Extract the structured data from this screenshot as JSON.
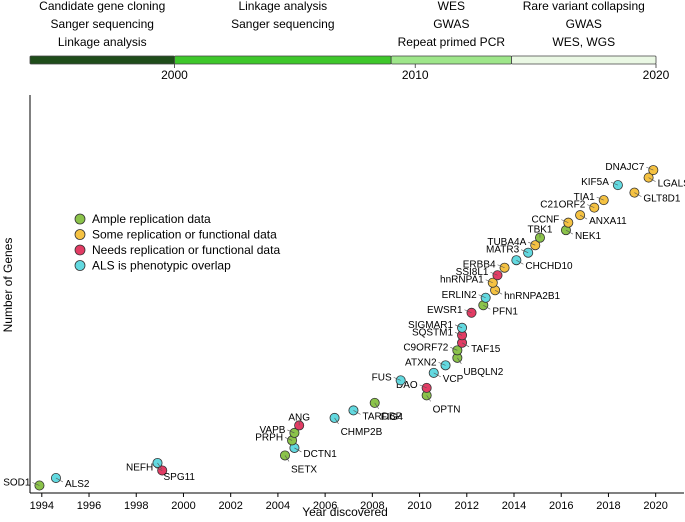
{
  "timeline": {
    "eras": [
      {
        "lines": [
          "Candidate gene cloning",
          "Sanger sequencing",
          "Linkage analysis"
        ],
        "start_year": 1994,
        "end_year": 2000,
        "color": "#1f4d1a"
      },
      {
        "lines": [
          "Linkage analysis",
          "Sanger sequencing"
        ],
        "start_year": 2000,
        "end_year": 2009,
        "color": "#3ec72b"
      },
      {
        "lines": [
          "WES",
          "GWAS",
          "Repeat primed PCR"
        ],
        "start_year": 2009,
        "end_year": 2014,
        "color": "#9ee68a"
      },
      {
        "lines": [
          "Rare variant collapsing",
          "GWAS",
          "WES, WGS"
        ],
        "start_year": 2014,
        "end_year": 2020,
        "color": "#eaf8e4"
      }
    ],
    "year_marks": [
      "2000",
      "2010",
      "2020"
    ]
  },
  "legend": {
    "placement": "upper-left",
    "entries": [
      {
        "label": "Ample replication data",
        "color": "#8bc34a"
      },
      {
        "label": "Some replication or functional data",
        "color": "#f5c242"
      },
      {
        "label": "Needs replication or functional data",
        "color": "#e23c64"
      },
      {
        "label": "ALS is phenotypic overlap",
        "color": "#62d9e0"
      }
    ]
  },
  "chart_data": {
    "type": "scatter",
    "xlabel": "Year discovered",
    "ylabel": "Number of Genes",
    "xlim": [
      1993.5,
      2021.2
    ],
    "ylim": [
      0,
      53
    ],
    "xticks": [
      1994,
      1996,
      1998,
      2000,
      2002,
      2004,
      2006,
      2008,
      2010,
      2012,
      2014,
      2016,
      2018,
      2020
    ],
    "grid": false,
    "categories": {
      "ample": "#8bc34a",
      "some": "#f5c242",
      "needs": "#e23c64",
      "overlap": "#62d9e0"
    },
    "points": [
      {
        "gene": "SOD1",
        "year": 1993.9,
        "count": 1,
        "category": "ample",
        "label_side": "left"
      },
      {
        "gene": "ALS2",
        "year": 1994.6,
        "count": 2,
        "category": "overlap",
        "label_side": "right"
      },
      {
        "gene": "NEFH",
        "year": 1999.1,
        "count": 3,
        "category": "needs",
        "label_side": "left"
      },
      {
        "gene": "SPG11",
        "year": 1998.9,
        "count": 4,
        "category": "overlap",
        "label_side": "below"
      },
      {
        "gene": "SETX",
        "year": 2004.3,
        "count": 5,
        "category": "ample",
        "label_side": "below"
      },
      {
        "gene": "DCTN1",
        "year": 2004.7,
        "count": 6,
        "category": "overlap",
        "label_side": "right"
      },
      {
        "gene": "PRPH",
        "year": 2004.6,
        "count": 7,
        "category": "ample",
        "label_side": "left"
      },
      {
        "gene": "VAPB",
        "year": 2004.7,
        "count": 8,
        "category": "ample",
        "label_side": "left"
      },
      {
        "gene": "ANG",
        "year": 2004.9,
        "count": 9,
        "category": "needs",
        "label_side": "above"
      },
      {
        "gene": "CHMP2B",
        "year": 2006.4,
        "count": 10,
        "category": "overlap",
        "label_side": "below"
      },
      {
        "gene": "TARDBP",
        "year": 2007.2,
        "count": 11,
        "category": "overlap",
        "label_side": "right"
      },
      {
        "gene": "FIG4",
        "year": 2008.1,
        "count": 12,
        "category": "ample",
        "label_side": "below"
      },
      {
        "gene": "OPTN",
        "year": 2010.3,
        "count": 13,
        "category": "ample",
        "label_side": "below"
      },
      {
        "gene": "DAO",
        "year": 2010.3,
        "count": 14,
        "category": "needs",
        "label_side": "left"
      },
      {
        "gene": "FUS",
        "year": 2009.2,
        "count": 15,
        "category": "overlap",
        "label_side": "left"
      },
      {
        "gene": "VCP",
        "year": 2010.6,
        "count": 16,
        "category": "overlap",
        "label_side": "right"
      },
      {
        "gene": "ATXN2",
        "year": 2011.1,
        "count": 17,
        "category": "overlap",
        "label_side": "left"
      },
      {
        "gene": "UBQLN2",
        "year": 2011.6,
        "count": 18,
        "category": "ample",
        "label_side": "below"
      },
      {
        "gene": "C9ORF72",
        "year": 2011.6,
        "count": 19,
        "category": "ample",
        "label_side": "left"
      },
      {
        "gene": "TAF15",
        "year": 2011.8,
        "count": 20,
        "category": "needs",
        "label_side": "right"
      },
      {
        "gene": "SQSTM1",
        "year": 2011.8,
        "count": 21,
        "category": "needs",
        "label_side": "left"
      },
      {
        "gene": "SIGMAR1",
        "year": 2011.8,
        "count": 22,
        "category": "overlap",
        "label_side": "left"
      },
      {
        "gene": "EWSR1",
        "year": 2012.2,
        "count": 24,
        "category": "needs",
        "label_side": "left"
      },
      {
        "gene": "PFN1",
        "year": 2012.7,
        "count": 25,
        "category": "ample",
        "label_side": "right"
      },
      {
        "gene": "ERLIN2",
        "year": 2012.8,
        "count": 26,
        "category": "overlap",
        "label_side": "left"
      },
      {
        "gene": "hnRNPA2B1",
        "year": 2013.2,
        "count": 27,
        "category": "some",
        "label_side": "right"
      },
      {
        "gene": "hnRNPA1",
        "year": 2013.1,
        "count": 28,
        "category": "some",
        "label_side": "left"
      },
      {
        "gene": "SSI8L1",
        "year": 2013.3,
        "count": 29,
        "category": "needs",
        "label_side": "left"
      },
      {
        "gene": "ERBB4",
        "year": 2013.6,
        "count": 30,
        "category": "some",
        "label_side": "left"
      },
      {
        "gene": "CHCHD10",
        "year": 2014.1,
        "count": 31,
        "category": "overlap",
        "label_side": "right"
      },
      {
        "gene": "MATR3",
        "year": 2014.6,
        "count": 32,
        "category": "overlap",
        "label_side": "left"
      },
      {
        "gene": "TUBA4A",
        "year": 2014.9,
        "count": 33,
        "category": "some",
        "label_side": "left"
      },
      {
        "gene": "TBK1",
        "year": 2015.1,
        "count": 34,
        "category": "ample",
        "label_side": "above"
      },
      {
        "gene": "NEK1",
        "year": 2016.2,
        "count": 35,
        "category": "ample",
        "label_side": "right"
      },
      {
        "gene": "CCNF",
        "year": 2016.3,
        "count": 36,
        "category": "some",
        "label_side": "left"
      },
      {
        "gene": "ANXA11",
        "year": 2016.8,
        "count": 37,
        "category": "some",
        "label_side": "right"
      },
      {
        "gene": "C21ORF2",
        "year": 2017.4,
        "count": 38,
        "category": "some",
        "label_side": "left"
      },
      {
        "gene": "TIA1",
        "year": 2017.8,
        "count": 39,
        "category": "some",
        "label_side": "left"
      },
      {
        "gene": "GLT8D1",
        "year": 2019.1,
        "count": 40,
        "category": "some",
        "label_side": "right"
      },
      {
        "gene": "KIF5A",
        "year": 2018.4,
        "count": 41,
        "category": "overlap",
        "label_side": "left"
      },
      {
        "gene": "LGALSL",
        "year": 2019.7,
        "count": 42,
        "category": "some",
        "label_side": "right"
      },
      {
        "gene": "DNAJC7",
        "year": 2019.9,
        "count": 43,
        "category": "some",
        "label_side": "left"
      }
    ]
  }
}
